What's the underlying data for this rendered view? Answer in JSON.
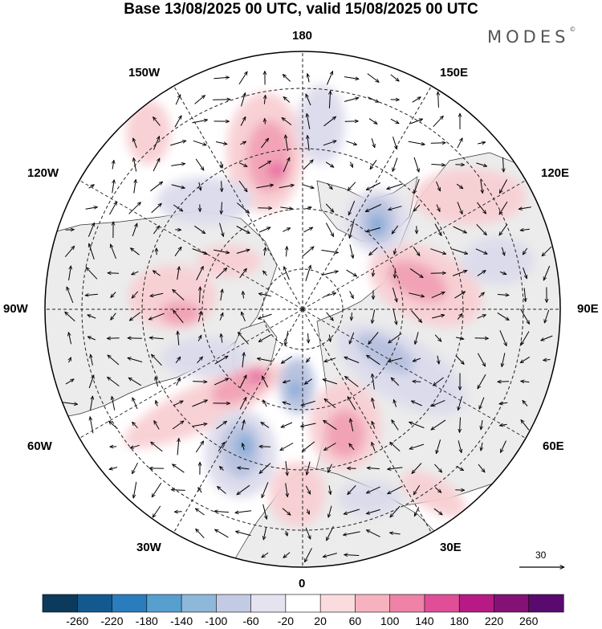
{
  "title": "Base 13/08/2025 00 UTC, valid 15/08/2025 00 UTC",
  "brand": "MODES",
  "brand_mark": "©",
  "longitude_labels": {
    "n": "180",
    "s": "0",
    "w": "90W",
    "e": "90E",
    "w150": "150W",
    "e150": "150E",
    "w120": "120W",
    "e120": "120E",
    "w60": "60W",
    "e60": "60E",
    "w30": "30W",
    "e30": "30E"
  },
  "reference_vector": {
    "label": "30",
    "value": 30
  },
  "colorbar": {
    "levels": [
      "-260",
      "-220",
      "-180",
      "-140",
      "-100",
      "-60",
      "-20",
      "20",
      "60",
      "100",
      "140",
      "180",
      "220",
      "260"
    ],
    "colors": [
      "#0b3a5c",
      "#13598f",
      "#2a7dbd",
      "#579fcf",
      "#8db8da",
      "#c3cbe4",
      "#e6e3f1",
      "#ffffff",
      "#fbdcde",
      "#f6b3bf",
      "#ef82a6",
      "#e04e98",
      "#b81a85",
      "#851177",
      "#5a0a6f"
    ]
  },
  "colors": {
    "land": "#ececec",
    "ocean": "#ffffff",
    "grid": "#222222",
    "positive_light": "#f8cfd3",
    "positive_mid": "#f2a0b3",
    "positive_strong": "#e86ba2",
    "negative_light": "#dcdbec",
    "negative_mid": "#b5c0df",
    "negative_strong": "#7fa8d6"
  }
}
